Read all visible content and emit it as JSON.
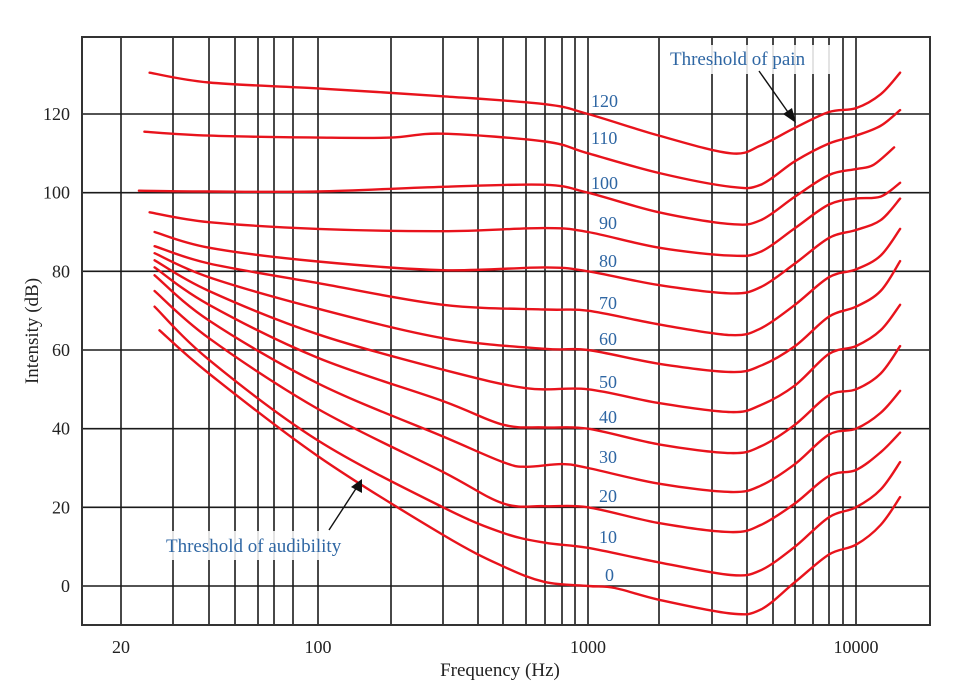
{
  "chart_data": {
    "type": "line",
    "title": "",
    "xlabel": "Frequency (Hz)",
    "ylabel": "Intensity (dB)",
    "xscale": "log",
    "xlim": [
      16,
      22000
    ],
    "ylim": [
      -10,
      139.5
    ],
    "grid": true,
    "x_ticks": [
      {
        "value": 20,
        "label": "20"
      },
      {
        "value": 100,
        "label": "100"
      },
      {
        "value": 1000,
        "label": "1000"
      },
      {
        "value": 10000,
        "label": "10000"
      }
    ],
    "y_ticks": [
      {
        "value": 0,
        "label": "0"
      },
      {
        "value": 20,
        "label": "20"
      },
      {
        "value": 40,
        "label": "40"
      },
      {
        "value": 60,
        "label": "60"
      },
      {
        "value": 80,
        "label": "80"
      },
      {
        "value": 100,
        "label": "100"
      },
      {
        "value": 120,
        "label": "120"
      }
    ],
    "x_gridlines": [
      20,
      30,
      40,
      50,
      60,
      70,
      80,
      100,
      200,
      300,
      400,
      500,
      600,
      700,
      800,
      900,
      1000,
      2000,
      3000,
      4000,
      5000,
      6000,
      7000,
      8000,
      9000,
      10000
    ],
    "series": [
      {
        "name": "120",
        "label": "120",
        "points": [
          [
            25,
            130.5
          ],
          [
            40,
            128
          ],
          [
            100,
            126.5
          ],
          [
            300,
            124.5
          ],
          [
            700,
            122.5
          ],
          [
            1000,
            120
          ],
          [
            2000,
            114.5
          ],
          [
            3500,
            110
          ],
          [
            4500,
            112
          ],
          [
            6000,
            116.5
          ],
          [
            8000,
            120.5
          ],
          [
            10000,
            121.5
          ],
          [
            13000,
            125
          ],
          [
            16000,
            130.5
          ]
        ]
      },
      {
        "name": "110",
        "label": "110",
        "points": [
          [
            24,
            115.5
          ],
          [
            40,
            114.5
          ],
          [
            100,
            114
          ],
          [
            200,
            114
          ],
          [
            300,
            115
          ],
          [
            700,
            113
          ],
          [
            1000,
            110
          ],
          [
            2000,
            105
          ],
          [
            3500,
            101.5
          ],
          [
            4500,
            102
          ],
          [
            6000,
            108
          ],
          [
            8000,
            112.5
          ],
          [
            10000,
            114.5
          ],
          [
            13000,
            117
          ],
          [
            16000,
            121
          ]
        ]
      },
      {
        "name": "100",
        "label": "100",
        "points": [
          [
            23,
            100.5
          ],
          [
            40,
            100.3
          ],
          [
            100,
            100.3
          ],
          [
            300,
            101.5
          ],
          [
            700,
            102
          ],
          [
            1000,
            100
          ],
          [
            2000,
            95
          ],
          [
            3500,
            92
          ],
          [
            4500,
            93
          ],
          [
            6000,
            99
          ],
          [
            8000,
            104.5
          ],
          [
            10000,
            106
          ],
          [
            12000,
            107
          ],
          [
            15000,
            111.5
          ]
        ]
      },
      {
        "name": "90",
        "label": "90",
        "points": [
          [
            25,
            95
          ],
          [
            40,
            92.5
          ],
          [
            100,
            90.8
          ],
          [
            300,
            90.2
          ],
          [
            700,
            91
          ],
          [
            1000,
            90
          ],
          [
            2000,
            86
          ],
          [
            3500,
            84
          ],
          [
            4500,
            85
          ],
          [
            6000,
            91
          ],
          [
            8000,
            97
          ],
          [
            10000,
            98.5
          ],
          [
            13000,
            99
          ],
          [
            16000,
            102.5
          ]
        ]
      },
      {
        "name": "80",
        "label": "80",
        "points": [
          [
            26,
            90
          ],
          [
            40,
            86
          ],
          [
            100,
            82.5
          ],
          [
            300,
            80.3
          ],
          [
            700,
            81
          ],
          [
            1000,
            80
          ],
          [
            2000,
            76.5
          ],
          [
            3500,
            74.4
          ],
          [
            4500,
            76
          ],
          [
            6000,
            82
          ],
          [
            8000,
            88.5
          ],
          [
            10000,
            90.5
          ],
          [
            13000,
            93
          ],
          [
            16000,
            98.5
          ]
        ]
      },
      {
        "name": "70",
        "label": "70",
        "points": [
          [
            26,
            86.4
          ],
          [
            40,
            82
          ],
          [
            100,
            77
          ],
          [
            300,
            71.5
          ],
          [
            700,
            70.3
          ],
          [
            1000,
            70
          ],
          [
            2000,
            66.5
          ],
          [
            3500,
            63.8
          ],
          [
            4500,
            65.5
          ],
          [
            6000,
            71.5
          ],
          [
            8000,
            78.5
          ],
          [
            10000,
            80.5
          ],
          [
            13000,
            84
          ],
          [
            16000,
            90.8
          ]
        ]
      },
      {
        "name": "60",
        "label": "60",
        "points": [
          [
            26,
            84.6
          ],
          [
            40,
            78.5
          ],
          [
            100,
            70.5
          ],
          [
            300,
            63
          ],
          [
            700,
            60.3
          ],
          [
            1000,
            60
          ],
          [
            2000,
            56.5
          ],
          [
            3500,
            54.4
          ],
          [
            4500,
            56
          ],
          [
            6000,
            61
          ],
          [
            8000,
            68.5
          ],
          [
            10000,
            71
          ],
          [
            13000,
            75
          ],
          [
            16000,
            82.6
          ]
        ]
      },
      {
        "name": "50",
        "label": "50",
        "points": [
          [
            26,
            82.8
          ],
          [
            40,
            75
          ],
          [
            100,
            64
          ],
          [
            300,
            55
          ],
          [
            600,
            50.3
          ],
          [
            1000,
            50
          ],
          [
            2000,
            46.5
          ],
          [
            3500,
            44.2
          ],
          [
            4500,
            46
          ],
          [
            6000,
            51
          ],
          [
            8000,
            59
          ],
          [
            10000,
            61
          ],
          [
            13000,
            65
          ],
          [
            16000,
            71.5
          ]
        ]
      },
      {
        "name": "40",
        "label": "40",
        "points": [
          [
            26,
            81
          ],
          [
            40,
            71.5
          ],
          [
            100,
            58
          ],
          [
            300,
            47
          ],
          [
            500,
            41
          ],
          [
            700,
            40.3
          ],
          [
            1000,
            40
          ],
          [
            2000,
            36
          ],
          [
            3500,
            33.8
          ],
          [
            4500,
            35.5
          ],
          [
            6000,
            41
          ],
          [
            8000,
            48.5
          ],
          [
            10000,
            50
          ],
          [
            13000,
            54
          ],
          [
            16000,
            61
          ]
        ]
      },
      {
        "name": "30",
        "label": "30",
        "points": [
          [
            26,
            79
          ],
          [
            40,
            67.5
          ],
          [
            100,
            51.5
          ],
          [
            300,
            38
          ],
          [
            500,
            31.5
          ],
          [
            600,
            30.3
          ],
          [
            800,
            31
          ],
          [
            1000,
            30
          ],
          [
            2000,
            26
          ],
          [
            3500,
            23.9
          ],
          [
            4500,
            25.5
          ],
          [
            6000,
            31
          ],
          [
            8000,
            38.5
          ],
          [
            10000,
            40
          ],
          [
            13000,
            44
          ],
          [
            16000,
            49.6
          ]
        ]
      },
      {
        "name": "20",
        "label": "20",
        "points": [
          [
            26,
            75
          ],
          [
            40,
            63
          ],
          [
            100,
            45
          ],
          [
            300,
            29
          ],
          [
            500,
            21
          ],
          [
            700,
            20.3
          ],
          [
            1000,
            20
          ],
          [
            2000,
            16
          ],
          [
            3500,
            13.7
          ],
          [
            4500,
            15.5
          ],
          [
            6000,
            21
          ],
          [
            8000,
            28
          ],
          [
            10000,
            29.5
          ],
          [
            13000,
            34
          ],
          [
            16000,
            39
          ]
        ]
      },
      {
        "name": "10",
        "label": "10",
        "points": [
          [
            26,
            71
          ],
          [
            40,
            57.5
          ],
          [
            100,
            37
          ],
          [
            300,
            20
          ],
          [
            500,
            13.5
          ],
          [
            700,
            11
          ],
          [
            1000,
            9.7
          ],
          [
            2000,
            6
          ],
          [
            3500,
            2.8
          ],
          [
            4500,
            4
          ],
          [
            6000,
            10
          ],
          [
            8000,
            17.5
          ],
          [
            10000,
            20
          ],
          [
            13000,
            24.5
          ],
          [
            16000,
            31.5
          ]
        ]
      },
      {
        "name": "0",
        "label": "0",
        "points": [
          [
            27,
            65
          ],
          [
            40,
            54
          ],
          [
            100,
            33
          ],
          [
            300,
            13
          ],
          [
            500,
            5
          ],
          [
            700,
            1
          ],
          [
            1000,
            0
          ],
          [
            1300,
            -0.5
          ],
          [
            2000,
            -3.5
          ],
          [
            3500,
            -7
          ],
          [
            4500,
            -6
          ],
          [
            6000,
            1
          ],
          [
            8000,
            8
          ],
          [
            10000,
            10.5
          ],
          [
            13000,
            15.5
          ],
          [
            16000,
            22.6
          ]
        ]
      }
    ],
    "annotations": [
      {
        "text": "Threshold of pain",
        "points_to": [
          6000,
          118
        ]
      },
      {
        "text": "Threshold of audibility",
        "points_to": [
          150,
          27
        ]
      }
    ]
  }
}
